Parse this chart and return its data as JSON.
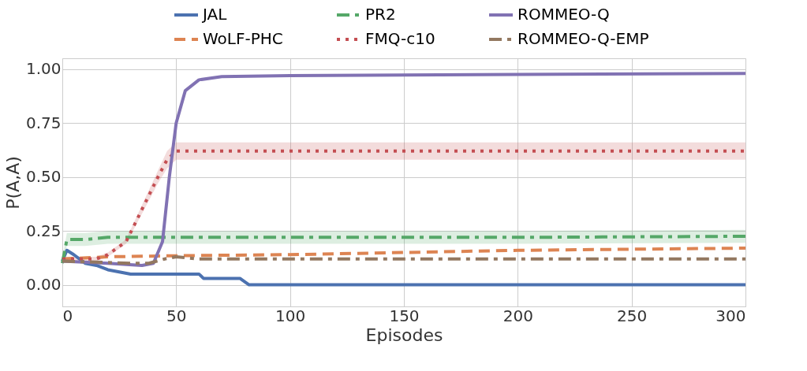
{
  "chart_data": {
    "type": "line",
    "xlabel": "Episodes",
    "ylabel": "P(A,A)",
    "xlim": [
      0,
      300
    ],
    "ylim": [
      -0.1,
      1.05
    ],
    "xticks": [
      0,
      50,
      100,
      150,
      200,
      250,
      300
    ],
    "yticks": [
      {
        "value": 0,
        "label": "0.00"
      },
      {
        "value": 0.25,
        "label": "0.25"
      },
      {
        "value": 0.5,
        "label": "0.50"
      },
      {
        "value": 0.75,
        "label": "0.75"
      },
      {
        "value": 1,
        "label": "1.00"
      }
    ],
    "grid": true,
    "legend": "top",
    "series": [
      {
        "name": "JAL",
        "color": "#4c72b0",
        "line_style": "solid",
        "x": [
          0,
          2,
          5,
          10,
          15,
          20,
          25,
          30,
          45,
          60,
          62,
          78,
          82,
          150,
          300
        ],
        "values": [
          0.11,
          0.16,
          0.14,
          0.1,
          0.09,
          0.07,
          0.06,
          0.05,
          0.05,
          0.05,
          0.03,
          0.03,
          0.0,
          0.0,
          0.0
        ]
      },
      {
        "name": "WoLF-PHC",
        "color": "#dd8452",
        "line_style": "dashed",
        "x": [
          0,
          20,
          50,
          100,
          150,
          200,
          250,
          300
        ],
        "values": [
          0.12,
          0.13,
          0.135,
          0.14,
          0.15,
          0.16,
          0.165,
          0.17
        ]
      },
      {
        "name": "PR2",
        "color": "#55a868",
        "line_style": "dashdot",
        "x": [
          0,
          2,
          10,
          20,
          50,
          100,
          200,
          300
        ],
        "values": [
          0.1,
          0.21,
          0.21,
          0.22,
          0.22,
          0.22,
          0.22,
          0.225
        ],
        "lower": [
          0.09,
          0.18,
          0.18,
          0.19,
          0.19,
          0.19,
          0.19,
          0.195
        ],
        "upper": [
          0.12,
          0.24,
          0.24,
          0.25,
          0.25,
          0.25,
          0.25,
          0.255
        ]
      },
      {
        "name": "FMQ-c10",
        "color": "#c44e52",
        "line_style": "dotted",
        "x": [
          0,
          15,
          20,
          28,
          35,
          42,
          46,
          50,
          100,
          200,
          300
        ],
        "values": [
          0.12,
          0.12,
          0.14,
          0.2,
          0.35,
          0.5,
          0.58,
          0.62,
          0.62,
          0.62,
          0.62
        ],
        "lower": [
          0.11,
          0.11,
          0.13,
          0.19,
          0.33,
          0.47,
          0.54,
          0.58,
          0.58,
          0.58,
          0.58
        ],
        "upper": [
          0.13,
          0.13,
          0.15,
          0.21,
          0.37,
          0.53,
          0.62,
          0.66,
          0.66,
          0.66,
          0.66
        ]
      },
      {
        "name": "ROMMEO-Q",
        "color": "#8172b3",
        "line_style": "solid",
        "x": [
          0,
          20,
          35,
          40,
          44,
          47,
          50,
          54,
          60,
          70,
          100,
          200,
          300
        ],
        "values": [
          0.11,
          0.1,
          0.09,
          0.1,
          0.2,
          0.5,
          0.75,
          0.9,
          0.95,
          0.965,
          0.97,
          0.975,
          0.98
        ]
      },
      {
        "name": "ROMMEO-Q-EMP",
        "color": "#937860",
        "line_style": "dashdot",
        "x": [
          0,
          30,
          38,
          45,
          50,
          60,
          150,
          300
        ],
        "values": [
          0.11,
          0.1,
          0.1,
          0.12,
          0.13,
          0.12,
          0.12,
          0.12
        ]
      }
    ]
  }
}
